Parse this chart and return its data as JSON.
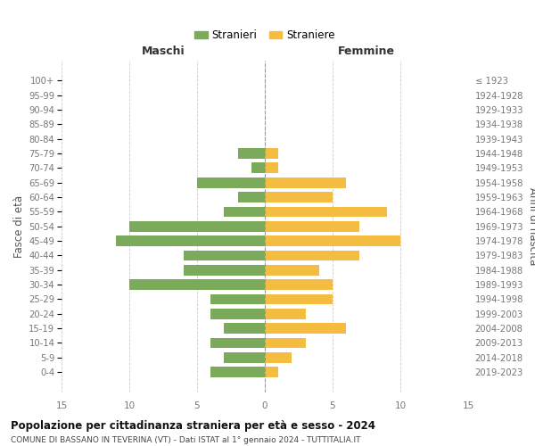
{
  "age_groups": [
    "100+",
    "95-99",
    "90-94",
    "85-89",
    "80-84",
    "75-79",
    "70-74",
    "65-69",
    "60-64",
    "55-59",
    "50-54",
    "45-49",
    "40-44",
    "35-39",
    "30-34",
    "25-29",
    "20-24",
    "15-19",
    "10-14",
    "5-9",
    "0-4"
  ],
  "birth_years": [
    "≤ 1923",
    "1924-1928",
    "1929-1933",
    "1934-1938",
    "1939-1943",
    "1944-1948",
    "1949-1953",
    "1954-1958",
    "1959-1963",
    "1964-1968",
    "1969-1973",
    "1974-1978",
    "1979-1983",
    "1984-1988",
    "1989-1993",
    "1994-1998",
    "1999-2003",
    "2004-2008",
    "2009-2013",
    "2014-2018",
    "2019-2023"
  ],
  "males": [
    0,
    0,
    0,
    0,
    0,
    2,
    1,
    5,
    2,
    3,
    10,
    11,
    6,
    6,
    10,
    4,
    4,
    3,
    4,
    3,
    4
  ],
  "females": [
    0,
    0,
    0,
    0,
    0,
    1,
    1,
    6,
    5,
    9,
    7,
    10,
    7,
    4,
    5,
    5,
    3,
    6,
    3,
    2,
    1
  ],
  "male_color": "#7aaa5a",
  "female_color": "#f5bc42",
  "title": "Popolazione per cittadinanza straniera per età e sesso - 2024",
  "subtitle": "COMUNE DI BASSANO IN TEVERINA (VT) - Dati ISTAT al 1° gennaio 2024 - TUTTITALIA.IT",
  "ylabel_left": "Fasce di età",
  "ylabel_right": "Anni di nascita",
  "xlabel_left": "Maschi",
  "xlabel_right": "Femmine",
  "legend_male": "Stranieri",
  "legend_female": "Straniere",
  "xlim": 15,
  "bg_color": "#ffffff",
  "grid_color": "#cccccc",
  "axis_label_color": "#555555",
  "tick_label_color": "#777777"
}
